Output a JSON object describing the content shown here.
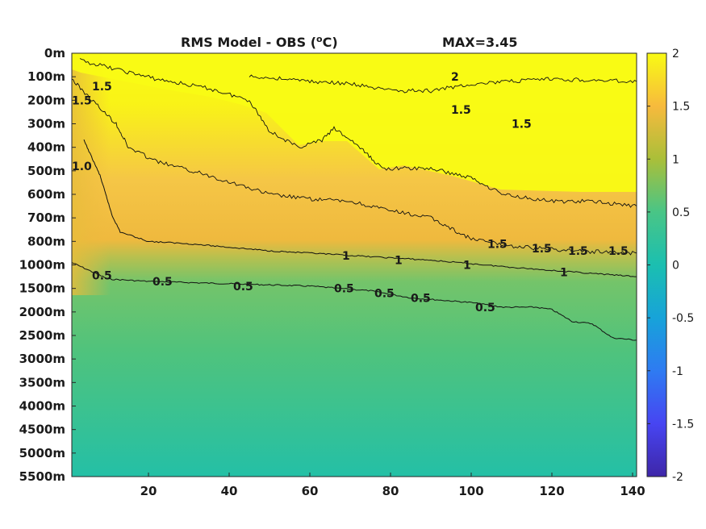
{
  "chart_data": {
    "type": "heatmap",
    "title": "RMS Model - OBS (°C)",
    "title_parts": {
      "prefix": "RMS Model - OBS (",
      "superscript": "o",
      "suffix": "C)",
      "max_label": "MAX=3.45"
    },
    "x": {
      "ticks": [
        20,
        40,
        60,
        80,
        100,
        120,
        140
      ],
      "range": [
        1,
        141
      ]
    },
    "y": {
      "ticks": [
        "0m",
        "100m",
        "200m",
        "300m",
        "400m",
        "500m",
        "600m",
        "700m",
        "800m",
        "1000m",
        "1500m",
        "2000m",
        "2500m",
        "3000m",
        "3500m",
        "4000m",
        "4500m",
        "5000m",
        "5500m"
      ],
      "direction": "downward"
    },
    "colorbar": {
      "range": [
        -2,
        2
      ],
      "ticks": [
        "2",
        "1.5",
        "1",
        "0.5",
        "0",
        "-0.5",
        "-1",
        "-1.5",
        "-2"
      ],
      "colormap": "parula"
    },
    "max_value": 3.45,
    "contour_levels": [
      0.5,
      1,
      1.5,
      2
    ],
    "contours": [
      {
        "level": 0.5,
        "points": [
          [
            1,
            8.9
          ],
          [
            10,
            9.6
          ],
          [
            20,
            9.7
          ],
          [
            40,
            9.8
          ],
          [
            60,
            9.9
          ],
          [
            75,
            10.1
          ],
          [
            85,
            10.4
          ],
          [
            100,
            10.6
          ],
          [
            108,
            10.8
          ],
          [
            116,
            10.8
          ],
          [
            120,
            10.9
          ],
          [
            125,
            11.4
          ],
          [
            130,
            11.5
          ],
          [
            135,
            12.1
          ],
          [
            141,
            12.2
          ]
        ]
      },
      {
        "level": 1,
        "points": [
          [
            4,
            3.7
          ],
          [
            8,
            5.2
          ],
          [
            11,
            6.9
          ],
          [
            13,
            7.6
          ],
          [
            20,
            8.0
          ],
          [
            30,
            8.1
          ],
          [
            50,
            8.4
          ],
          [
            70,
            8.6
          ],
          [
            90,
            8.8
          ],
          [
            110,
            9.1
          ],
          [
            125,
            9.3
          ],
          [
            141,
            9.5
          ]
        ]
      },
      {
        "level": 1.5,
        "points": [
          [
            1,
            1.1
          ],
          [
            6,
            2.0
          ],
          [
            12,
            3.0
          ],
          [
            15,
            4.0
          ],
          [
            22,
            4.6
          ],
          [
            35,
            5.2
          ],
          [
            50,
            6.0
          ],
          [
            60,
            6.2
          ],
          [
            70,
            6.3
          ],
          [
            80,
            6.7
          ],
          [
            90,
            7.0
          ],
          [
            100,
            7.9
          ],
          [
            110,
            8.2
          ],
          [
            125,
            8.4
          ],
          [
            141,
            8.5
          ]
        ]
      },
      {
        "level": 2,
        "points": [
          [
            3,
            0.3
          ],
          [
            10,
            0.6
          ],
          [
            22,
            1.1
          ],
          [
            35,
            1.5
          ],
          [
            45,
            2.0
          ],
          [
            50,
            3.3
          ],
          [
            57,
            4.0
          ],
          [
            63,
            3.7
          ],
          [
            66,
            3.2
          ],
          [
            71,
            3.8
          ],
          [
            78,
            4.9
          ],
          [
            90,
            4.9
          ],
          [
            100,
            5.3
          ],
          [
            108,
            6.0
          ],
          [
            120,
            6.3
          ],
          [
            130,
            6.3
          ],
          [
            141,
            6.5
          ]
        ]
      },
      {
        "level": 2,
        "points": [
          [
            45,
            1.0
          ],
          [
            55,
            1.1
          ],
          [
            60,
            1.2
          ],
          [
            70,
            1.3
          ],
          [
            80,
            1.6
          ],
          [
            90,
            1.6
          ],
          [
            100,
            1.3
          ],
          [
            120,
            1.1
          ],
          [
            141,
            1.2
          ]
        ]
      }
    ],
    "contour_labels": [
      {
        "text": "0.5",
        "x": 6,
        "y": 9.45
      },
      {
        "text": "0.5",
        "x": 21,
        "y": 9.7
      },
      {
        "text": "0.5",
        "x": 41,
        "y": 9.9
      },
      {
        "text": "0.5",
        "x": 66,
        "y": 10.0
      },
      {
        "text": "0.5",
        "x": 76,
        "y": 10.2
      },
      {
        "text": "0.5",
        "x": 85,
        "y": 10.4
      },
      {
        "text": "0.5",
        "x": 101,
        "y": 10.8
      },
      {
        "text": "1",
        "x": 68,
        "y": 8.6
      },
      {
        "text": "1",
        "x": 81,
        "y": 8.8
      },
      {
        "text": "1",
        "x": 98,
        "y": 9.0
      },
      {
        "text": "1",
        "x": 122,
        "y": 9.3
      },
      {
        "text": "1.5",
        "x": 104,
        "y": 8.1
      },
      {
        "text": "1.5",
        "x": 115,
        "y": 8.3
      },
      {
        "text": "1.5",
        "x": 124,
        "y": 8.4
      },
      {
        "text": "1.5",
        "x": 134,
        "y": 8.4
      },
      {
        "text": "1.5",
        "x": 1,
        "y": 2.0
      },
      {
        "text": "1.5",
        "x": 6,
        "y": 1.4
      },
      {
        "text": "1.0",
        "x": 1,
        "y": 4.8
      },
      {
        "text": "2",
        "x": 95,
        "y": 1.0
      },
      {
        "text": "1.5",
        "x": 95,
        "y": 2.4
      },
      {
        "text": "1.5",
        "x": 110,
        "y": 3.0
      }
    ]
  }
}
